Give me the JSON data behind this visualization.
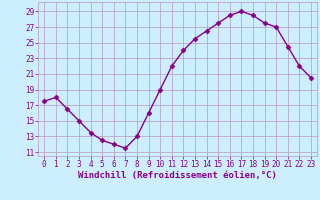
{
  "x": [
    0,
    1,
    2,
    3,
    4,
    5,
    6,
    7,
    8,
    9,
    10,
    11,
    12,
    13,
    14,
    15,
    16,
    17,
    18,
    19,
    20,
    21,
    22,
    23
  ],
  "y": [
    17.5,
    18.0,
    16.5,
    15.0,
    13.5,
    12.5,
    12.0,
    11.5,
    13.0,
    16.0,
    19.0,
    22.0,
    24.0,
    25.5,
    26.5,
    27.5,
    28.5,
    29.0,
    28.5,
    27.5,
    27.0,
    24.5,
    22.0,
    20.5
  ],
  "line_color": "#880088",
  "marker": "D",
  "marker_size": 2.5,
  "bg_color": "#cceeff",
  "grid_color": "#bb99bb",
  "xlabel": "Windchill (Refroidissement éolien,°C)",
  "ylabel_ticks": [
    11,
    13,
    15,
    17,
    19,
    21,
    23,
    25,
    27,
    29
  ],
  "xtick_labels": [
    "0",
    "1",
    "2",
    "3",
    "4",
    "5",
    "6",
    "7",
    "8",
    "9",
    "10",
    "11",
    "12",
    "13",
    "14",
    "15",
    "16",
    "17",
    "18",
    "19",
    "20",
    "21",
    "22",
    "23"
  ],
  "ylim": [
    10.5,
    30.2
  ],
  "xlim": [
    -0.5,
    23.5
  ],
  "xlabel_fontsize": 6.5,
  "tick_fontsize": 5.5,
  "line_width": 1.0
}
